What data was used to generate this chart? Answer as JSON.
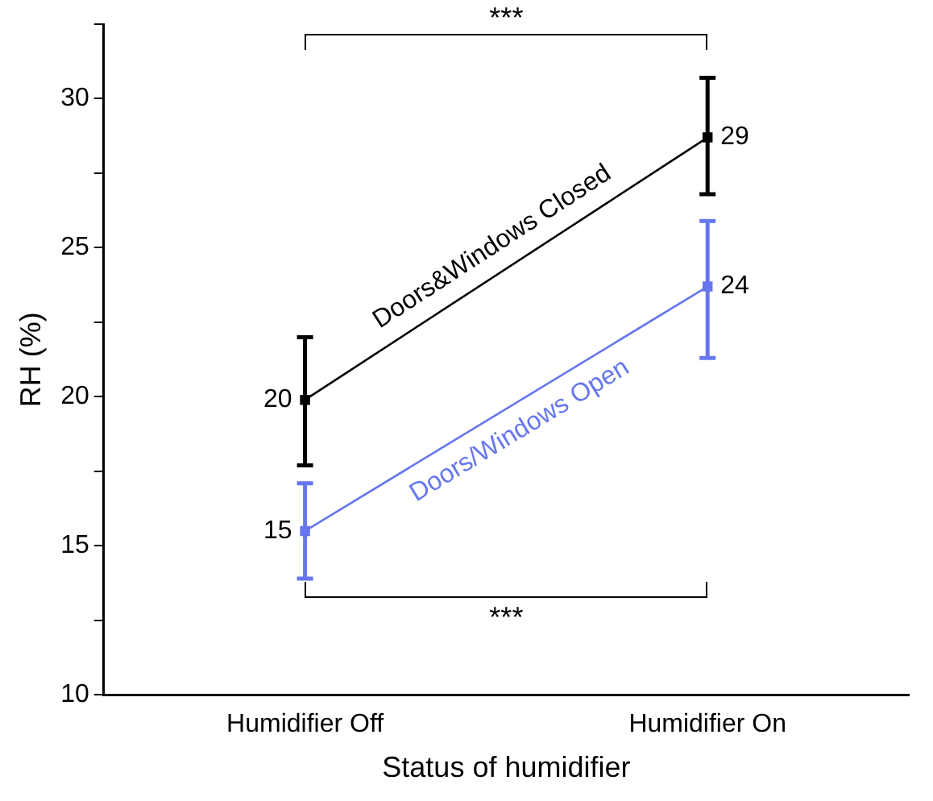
{
  "chart_data": {
    "type": "line",
    "xlabel": "Status of humidifier",
    "ylabel": "RH (%)",
    "categories": [
      "Humidifier Off",
      "Humidifier On"
    ],
    "series": [
      {
        "name": "Doors&Windows Closed",
        "color": "#000000",
        "values": [
          19.9,
          28.7
        ],
        "errors": [
          [
            17.7,
            22.0
          ],
          [
            26.8,
            30.7
          ]
        ],
        "value_labels": [
          "20",
          "29"
        ]
      },
      {
        "name": "Doors/Windows Open",
        "color": "#6677ee",
        "values": [
          15.5,
          23.7
        ],
        "errors": [
          [
            13.9,
            17.1
          ],
          [
            21.3,
            25.9
          ]
        ],
        "value_labels": [
          "15",
          "24"
        ]
      }
    ],
    "ylim": [
      10,
      32.5
    ],
    "yticks": [
      10,
      {
        "value": 12.5,
        "label": null
      },
      15,
      {
        "value": 17.5,
        "label": null
      },
      20,
      {
        "value": 22.5,
        "label": null
      },
      25,
      {
        "value": 27.5,
        "label": null
      },
      30,
      {
        "value": 32.5,
        "label": null
      }
    ],
    "annotations": [
      "***",
      "***"
    ],
    "grid": false,
    "legend": false,
    "marker": "square",
    "line_style": "solid"
  }
}
